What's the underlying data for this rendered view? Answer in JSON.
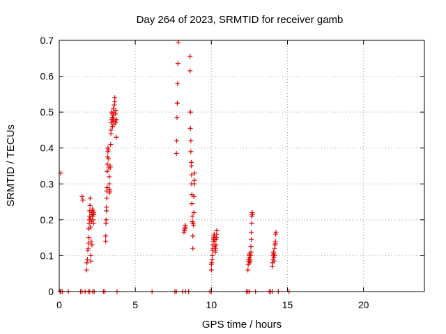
{
  "chart_data": {
    "type": "scatter",
    "title": "Day 264 of 2023, SRMTID for receiver gamb",
    "xlabel": "GPS time / hours",
    "ylabel": "SRMTID / TECUs",
    "xlim": [
      0,
      24
    ],
    "ylim": [
      0,
      0.7
    ],
    "grid": true,
    "marker": "+",
    "color": "#e00000",
    "xticks": [
      {
        "v": 0,
        "label": "0"
      },
      {
        "v": 5,
        "label": "5"
      },
      {
        "v": 10,
        "label": "10"
      },
      {
        "v": 15,
        "label": "15"
      },
      {
        "v": 20,
        "label": "20"
      }
    ],
    "yticks": [
      {
        "v": 0,
        "label": "0"
      },
      {
        "v": 0.1,
        "label": "0.1"
      },
      {
        "v": 0.2,
        "label": "0.2"
      },
      {
        "v": 0.3,
        "label": "0.3"
      },
      {
        "v": 0.4,
        "label": "0.4"
      },
      {
        "v": 0.5,
        "label": "0.5"
      },
      {
        "v": 0.6,
        "label": "0.6"
      },
      {
        "v": 0.7,
        "label": "0.7"
      }
    ],
    "points": [
      [
        0.1,
        0.33
      ],
      [
        1.5,
        0.265
      ],
      [
        1.55,
        0.255
      ],
      [
        1.8,
        0.06
      ],
      [
        1.82,
        0.08
      ],
      [
        1.85,
        0.09
      ],
      [
        1.88,
        0.115
      ],
      [
        1.9,
        0.12
      ],
      [
        1.92,
        0.135
      ],
      [
        1.95,
        0.15
      ],
      [
        1.95,
        0.175
      ],
      [
        1.97,
        0.19
      ],
      [
        1.98,
        0.2
      ],
      [
        2.0,
        0.21
      ],
      [
        2.0,
        0.225
      ],
      [
        2.02,
        0.24
      ],
      [
        2.03,
        0.26
      ],
      [
        2.05,
        0.205
      ],
      [
        2.05,
        0.18
      ],
      [
        2.07,
        0.1
      ],
      [
        2.08,
        0.085
      ],
      [
        2.1,
        0.14
      ],
      [
        2.12,
        0.195
      ],
      [
        2.12,
        0.22
      ],
      [
        2.15,
        0.215
      ],
      [
        2.15,
        0.13
      ],
      [
        2.18,
        0.23
      ],
      [
        2.2,
        0.225
      ],
      [
        2.2,
        0.21
      ],
      [
        2.22,
        0.2
      ],
      [
        2.25,
        0.22
      ],
      [
        2.25,
        0.19
      ],
      [
        2.28,
        0.215
      ],
      [
        3.05,
        0.14
      ],
      [
        3.05,
        0.155
      ],
      [
        3.07,
        0.19
      ],
      [
        3.08,
        0.2
      ],
      [
        3.1,
        0.225
      ],
      [
        3.1,
        0.235
      ],
      [
        3.12,
        0.26
      ],
      [
        3.12,
        0.28
      ],
      [
        3.15,
        0.29
      ],
      [
        3.15,
        0.335
      ],
      [
        3.17,
        0.355
      ],
      [
        3.18,
        0.375
      ],
      [
        3.2,
        0.39
      ],
      [
        3.2,
        0.4
      ],
      [
        3.22,
        0.395
      ],
      [
        3.25,
        0.37
      ],
      [
        3.25,
        0.345
      ],
      [
        3.28,
        0.32
      ],
      [
        3.28,
        0.3
      ],
      [
        3.3,
        0.285
      ],
      [
        3.3,
        0.275
      ],
      [
        3.33,
        0.28
      ],
      [
        3.35,
        0.345
      ],
      [
        3.35,
        0.35
      ],
      [
        3.38,
        0.41
      ],
      [
        3.4,
        0.44
      ],
      [
        3.4,
        0.45
      ],
      [
        3.42,
        0.47
      ],
      [
        3.45,
        0.48
      ],
      [
        3.45,
        0.5
      ],
      [
        3.48,
        0.495
      ],
      [
        3.5,
        0.485
      ],
      [
        3.5,
        0.46
      ],
      [
        3.52,
        0.475
      ],
      [
        3.55,
        0.49
      ],
      [
        3.55,
        0.51
      ],
      [
        3.58,
        0.48
      ],
      [
        3.6,
        0.465
      ],
      [
        3.6,
        0.5
      ],
      [
        3.62,
        0.52
      ],
      [
        3.65,
        0.53
      ],
      [
        3.65,
        0.54
      ],
      [
        3.68,
        0.475
      ],
      [
        3.7,
        0.47
      ],
      [
        3.7,
        0.495
      ],
      [
        3.72,
        0.505
      ],
      [
        3.75,
        0.48
      ],
      [
        3.75,
        0.43
      ],
      [
        7.7,
        0.385
      ],
      [
        7.72,
        0.42
      ],
      [
        7.74,
        0.485
      ],
      [
        7.76,
        0.525
      ],
      [
        7.78,
        0.58
      ],
      [
        7.8,
        0.635
      ],
      [
        7.82,
        0.695
      ],
      [
        8.2,
        0.165
      ],
      [
        8.22,
        0.17
      ],
      [
        8.25,
        0.175
      ],
      [
        8.28,
        0.185
      ],
      [
        8.3,
        0.18
      ],
      [
        8.6,
        0.655
      ],
      [
        8.6,
        0.615
      ],
      [
        8.62,
        0.5
      ],
      [
        8.62,
        0.455
      ],
      [
        8.65,
        0.42
      ],
      [
        8.65,
        0.39
      ],
      [
        8.68,
        0.36
      ],
      [
        8.68,
        0.35
      ],
      [
        8.7,
        0.325
      ],
      [
        8.7,
        0.3
      ],
      [
        8.72,
        0.27
      ],
      [
        8.72,
        0.245
      ],
      [
        8.75,
        0.21
      ],
      [
        8.75,
        0.195
      ],
      [
        8.78,
        0.155
      ],
      [
        8.78,
        0.12
      ],
      [
        8.8,
        0.19
      ],
      [
        8.82,
        0.185
      ],
      [
        8.85,
        0.22
      ],
      [
        8.85,
        0.265
      ],
      [
        8.88,
        0.3
      ],
      [
        8.88,
        0.31
      ],
      [
        8.9,
        0.33
      ],
      [
        10.0,
        0.06
      ],
      [
        10.0,
        0.075
      ],
      [
        10.02,
        0.08
      ],
      [
        10.05,
        0.09
      ],
      [
        10.05,
        0.1
      ],
      [
        10.08,
        0.115
      ],
      [
        10.1,
        0.12
      ],
      [
        10.1,
        0.13
      ],
      [
        10.12,
        0.14
      ],
      [
        10.15,
        0.145
      ],
      [
        10.15,
        0.15
      ],
      [
        10.18,
        0.16
      ],
      [
        10.2,
        0.155
      ],
      [
        10.2,
        0.14
      ],
      [
        10.22,
        0.125
      ],
      [
        10.25,
        0.115
      ],
      [
        10.25,
        0.11
      ],
      [
        10.28,
        0.12
      ],
      [
        10.3,
        0.13
      ],
      [
        10.3,
        0.145
      ],
      [
        10.32,
        0.15
      ],
      [
        10.35,
        0.16
      ],
      [
        10.35,
        0.17
      ],
      [
        12.4,
        0.06
      ],
      [
        12.42,
        0.075
      ],
      [
        12.45,
        0.085
      ],
      [
        12.45,
        0.09
      ],
      [
        12.48,
        0.1
      ],
      [
        12.5,
        0.105
      ],
      [
        12.5,
        0.095
      ],
      [
        12.52,
        0.08
      ],
      [
        12.55,
        0.085
      ],
      [
        12.55,
        0.09
      ],
      [
        12.58,
        0.1
      ],
      [
        12.6,
        0.11
      ],
      [
        12.6,
        0.125
      ],
      [
        12.62,
        0.145
      ],
      [
        12.62,
        0.165
      ],
      [
        12.65,
        0.19
      ],
      [
        12.65,
        0.21
      ],
      [
        12.68,
        0.22
      ],
      [
        12.7,
        0.215
      ],
      [
        14.0,
        0.07
      ],
      [
        14.02,
        0.08
      ],
      [
        14.05,
        0.09
      ],
      [
        14.05,
        0.1
      ],
      [
        14.08,
        0.11
      ],
      [
        14.1,
        0.105
      ],
      [
        14.1,
        0.095
      ],
      [
        14.12,
        0.085
      ],
      [
        14.15,
        0.1
      ],
      [
        14.15,
        0.12
      ],
      [
        14.18,
        0.13
      ],
      [
        14.2,
        0.135
      ],
      [
        14.2,
        0.14
      ],
      [
        14.22,
        0.16
      ],
      [
        14.25,
        0.165
      ],
      [
        0.05,
        0
      ],
      [
        0.1,
        0
      ],
      [
        0.2,
        0
      ],
      [
        0.6,
        0
      ],
      [
        1.4,
        0
      ],
      [
        1.5,
        0
      ],
      [
        1.7,
        0
      ],
      [
        1.9,
        0
      ],
      [
        2.0,
        0
      ],
      [
        2.2,
        0
      ],
      [
        2.3,
        0
      ],
      [
        2.9,
        0
      ],
      [
        3.0,
        0
      ],
      [
        3.8,
        0
      ],
      [
        6.1,
        0
      ],
      [
        7.6,
        0
      ],
      [
        7.7,
        0
      ],
      [
        8.1,
        0
      ],
      [
        8.3,
        0
      ],
      [
        8.5,
        0
      ],
      [
        9.9,
        0
      ],
      [
        10.0,
        0
      ],
      [
        12.3,
        0
      ],
      [
        12.4,
        0
      ],
      [
        12.5,
        0
      ],
      [
        12.9,
        0
      ],
      [
        13.8,
        0
      ],
      [
        13.9,
        0
      ],
      [
        14.0,
        0
      ],
      [
        14.4,
        0
      ],
      [
        15.1,
        0
      ]
    ]
  }
}
